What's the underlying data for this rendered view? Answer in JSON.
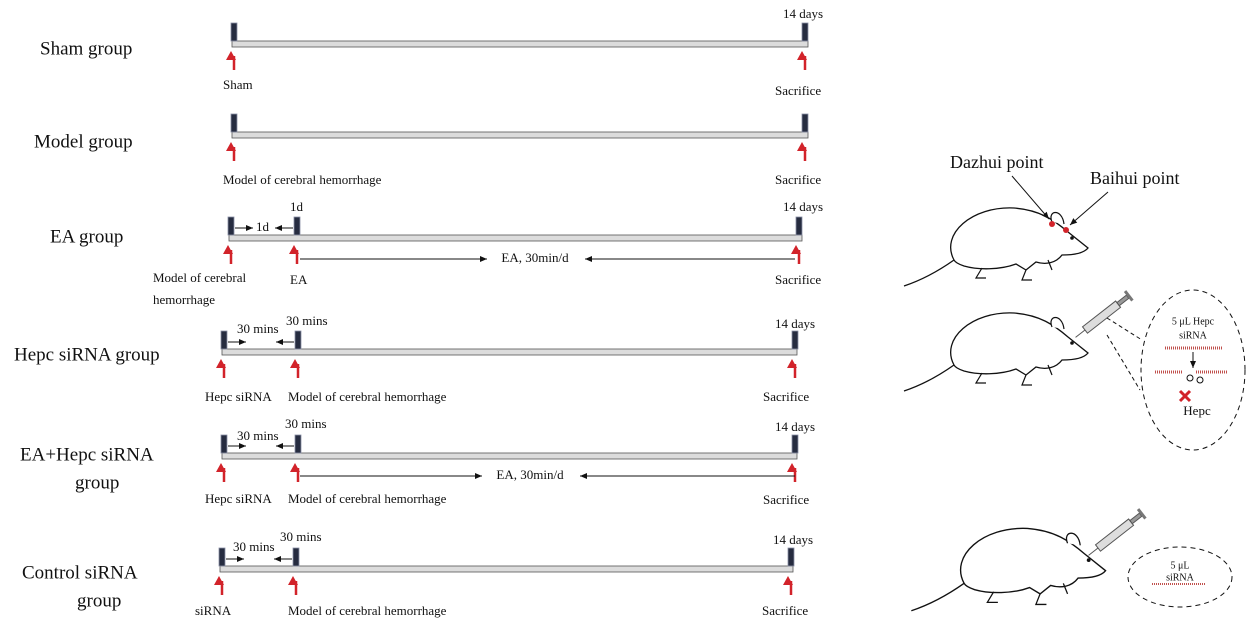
{
  "groups": [
    {
      "label": [
        "Sham group"
      ],
      "above": [
        "14 days"
      ],
      "below": [
        "Sham",
        "Sacrifice"
      ]
    },
    {
      "label": [
        "Model group"
      ],
      "above": [],
      "below": [
        "Model of cerebral hemorrhage",
        "Sacrifice"
      ]
    },
    {
      "label": [
        "EA group"
      ],
      "above": [
        "1d",
        "14 days"
      ],
      "interval": "1d",
      "span": "EA, 30min/d",
      "below": [
        [
          "Model of cerebral",
          "hemorrhage"
        ],
        "EA",
        "Sacrifice"
      ]
    },
    {
      "label": [
        "Hepc siRNA group"
      ],
      "above": [
        "30 mins",
        "14 days"
      ],
      "interval": "30 mins",
      "below": [
        "Hepc siRNA",
        "Model of cerebral hemorrhage",
        "Sacrifice"
      ]
    },
    {
      "label": [
        "EA+Hepc siRNA",
        "group"
      ],
      "above": [
        "30 mins",
        "14 days"
      ],
      "interval": "30 mins",
      "span": "EA, 30min/d",
      "below": [
        "Hepc siRNA",
        "Model of cerebral hemorrhage",
        "Sacrifice"
      ]
    },
    {
      "label": [
        "Control siRNA",
        "group"
      ],
      "above": [
        "30 mins",
        "14 days"
      ],
      "interval": "30 mins",
      "below": [
        "siRNA",
        "Model of cerebral hemorrhage",
        "Sacrifice"
      ]
    }
  ],
  "illustration": {
    "acupoints": [
      "Dazhui point",
      "Baihui point"
    ],
    "hepc_injection": [
      "5 μL Hepc",
      "siRNA"
    ],
    "knockdown_target": "Hepc",
    "control_injection": [
      "5 μL",
      "siRNA"
    ]
  }
}
